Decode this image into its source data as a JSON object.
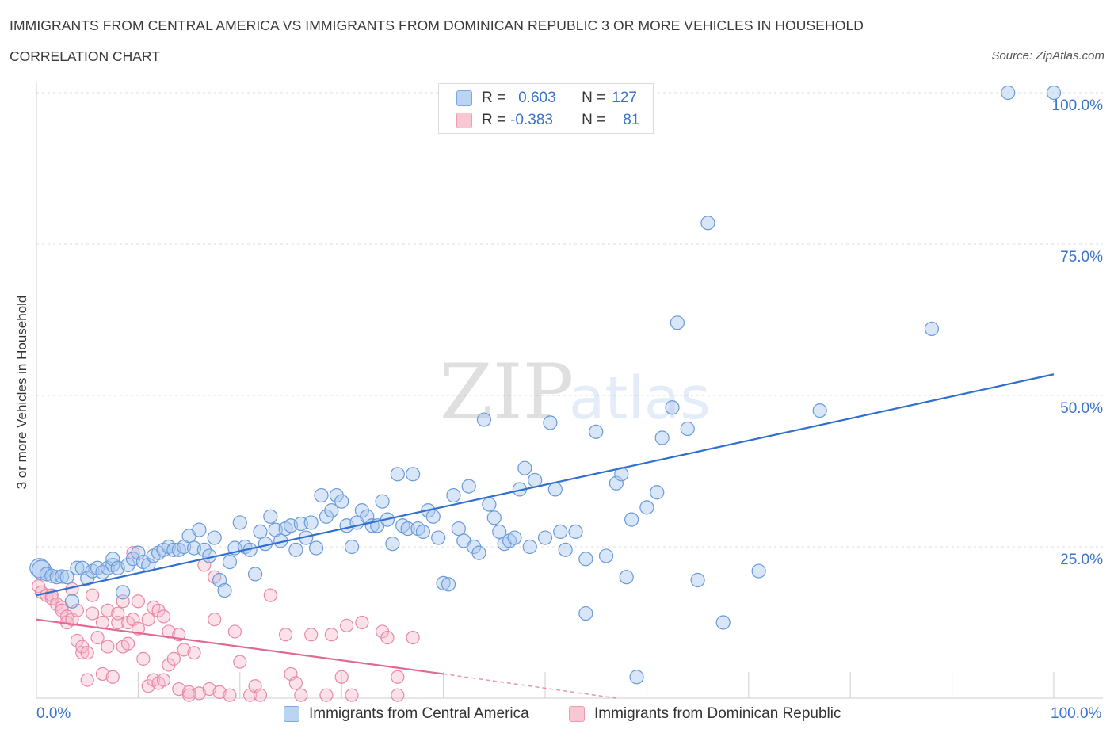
{
  "header": {
    "title": "IMMIGRANTS FROM CENTRAL AMERICA VS IMMIGRANTS FROM DOMINICAN REPUBLIC 3 OR MORE VEHICLES IN HOUSEHOLD",
    "subtitle": "CORRELATION CHART",
    "source": "Source: ZipAtlas.com"
  },
  "watermark": {
    "zip": "ZIP",
    "atlas": "atlas"
  },
  "legend": {
    "rows": [
      {
        "r_label": "R =",
        "r_value": "0.603",
        "n_label": "N =",
        "n_value": "127",
        "color": "#7aa8e8"
      },
      {
        "r_label": "R =",
        "r_value": "-0.383",
        "n_label": "N =",
        "n_value": "81",
        "color": "#f09ab5"
      }
    ]
  },
  "colors": {
    "blue_fill": "#a8c8f0",
    "blue_stroke": "#6a9ad8",
    "blue_line": "#2f6fd0",
    "pink_fill": "#f7bccc",
    "pink_stroke": "#e888a8",
    "pink_line": "#e06a92",
    "accent_text": "#3b73c8"
  },
  "chart_data": {
    "type": "scatter",
    "title": "IMMIGRANTS FROM CENTRAL AMERICA VS IMMIGRANTS FROM DOMINICAN REPUBLIC 3 OR MORE VEHICLES IN HOUSEHOLD",
    "subtitle": "CORRELATION CHART",
    "xlabel": "",
    "ylabel": "3 or more Vehicles in Household",
    "xlim": [
      0,
      100
    ],
    "ylim": [
      0,
      100
    ],
    "x_tick_labels": [
      "0.0%",
      "100.0%"
    ],
    "y_tick_labels": [
      "25.0%",
      "50.0%",
      "75.0%",
      "100.0%"
    ],
    "y_ticks": [
      25,
      50,
      75,
      100
    ],
    "grid": true,
    "legend_position": "top-center and bottom",
    "series": [
      {
        "name": "Immigrants from Central America",
        "R": 0.603,
        "N": 127,
        "trend": {
          "x": [
            0,
            100
          ],
          "y": [
            17.0,
            53.5
          ],
          "style": "solid"
        },
        "points": [
          [
            0.3,
            21.5
          ],
          [
            0.5,
            21.2
          ],
          [
            1.0,
            20.5
          ],
          [
            1.5,
            20.2
          ],
          [
            2.0,
            20.0
          ],
          [
            2.5,
            20.1
          ],
          [
            3.0,
            20.0
          ],
          [
            3.5,
            16.0
          ],
          [
            4.0,
            21.5
          ],
          [
            4.5,
            21.5
          ],
          [
            5.0,
            19.8
          ],
          [
            5.5,
            21.0
          ],
          [
            6.0,
            21.5
          ],
          [
            6.5,
            20.8
          ],
          [
            7.0,
            21.5
          ],
          [
            7.5,
            22.0
          ],
          [
            7.5,
            23.0
          ],
          [
            8.0,
            21.5
          ],
          [
            8.5,
            17.5
          ],
          [
            9.0,
            22.0
          ],
          [
            9.5,
            23.0
          ],
          [
            10.0,
            24.0
          ],
          [
            10.5,
            22.5
          ],
          [
            11.0,
            22.0
          ],
          [
            11.5,
            23.5
          ],
          [
            12.0,
            24.0
          ],
          [
            12.5,
            24.5
          ],
          [
            13.0,
            25.0
          ],
          [
            13.5,
            24.5
          ],
          [
            14.0,
            24.5
          ],
          [
            14.5,
            25.0
          ],
          [
            15.0,
            26.8
          ],
          [
            15.5,
            24.8
          ],
          [
            16.0,
            27.8
          ],
          [
            16.5,
            24.5
          ],
          [
            17.0,
            23.5
          ],
          [
            17.5,
            26.5
          ],
          [
            18.0,
            19.5
          ],
          [
            18.5,
            17.8
          ],
          [
            19.0,
            22.5
          ],
          [
            19.5,
            24.8
          ],
          [
            20.0,
            29.0
          ],
          [
            20.5,
            25.0
          ],
          [
            21.0,
            24.5
          ],
          [
            21.5,
            20.5
          ],
          [
            22.0,
            27.5
          ],
          [
            22.5,
            25.5
          ],
          [
            23.0,
            30.0
          ],
          [
            23.5,
            27.8
          ],
          [
            24.0,
            26.0
          ],
          [
            24.5,
            28.0
          ],
          [
            25.0,
            28.5
          ],
          [
            25.5,
            24.5
          ],
          [
            26.0,
            28.8
          ],
          [
            26.5,
            26.5
          ],
          [
            27.0,
            29.0
          ],
          [
            27.5,
            24.8
          ],
          [
            28.0,
            33.5
          ],
          [
            28.5,
            30.0
          ],
          [
            29.0,
            31.0
          ],
          [
            29.5,
            33.5
          ],
          [
            30.0,
            32.5
          ],
          [
            30.5,
            28.5
          ],
          [
            31.0,
            25.0
          ],
          [
            31.5,
            29.0
          ],
          [
            32.0,
            31.0
          ],
          [
            32.5,
            30.0
          ],
          [
            33.0,
            28.5
          ],
          [
            33.5,
            28.5
          ],
          [
            34.0,
            32.5
          ],
          [
            34.5,
            29.5
          ],
          [
            35.0,
            25.5
          ],
          [
            35.5,
            37.0
          ],
          [
            36.0,
            28.5
          ],
          [
            36.5,
            28.0
          ],
          [
            37.0,
            37.0
          ],
          [
            37.5,
            28.0
          ],
          [
            38.0,
            27.5
          ],
          [
            38.5,
            31.0
          ],
          [
            39.0,
            30.0
          ],
          [
            39.5,
            26.5
          ],
          [
            40.0,
            19.0
          ],
          [
            40.5,
            18.8
          ],
          [
            41.0,
            33.5
          ],
          [
            41.5,
            28.0
          ],
          [
            42.0,
            26.0
          ],
          [
            42.5,
            35.0
          ],
          [
            43.0,
            25.0
          ],
          [
            43.5,
            24.0
          ],
          [
            44.0,
            46.0
          ],
          [
            44.5,
            32.0
          ],
          [
            45.0,
            29.8
          ],
          [
            45.5,
            27.5
          ],
          [
            46.0,
            25.5
          ],
          [
            46.5,
            26.0
          ],
          [
            47.0,
            26.5
          ],
          [
            47.5,
            34.5
          ],
          [
            48.0,
            38.0
          ],
          [
            48.5,
            25.0
          ],
          [
            49.0,
            36.0
          ],
          [
            50.0,
            26.5
          ],
          [
            50.5,
            45.5
          ],
          [
            51.0,
            34.5
          ],
          [
            51.5,
            27.5
          ],
          [
            52.0,
            24.5
          ],
          [
            53.0,
            27.5
          ],
          [
            54.0,
            14.0
          ],
          [
            54.0,
            23.0
          ],
          [
            55.0,
            44.0
          ],
          [
            56.0,
            23.5
          ],
          [
            57.0,
            35.5
          ],
          [
            57.5,
            37.0
          ],
          [
            58.0,
            20.0
          ],
          [
            58.5,
            29.5
          ],
          [
            59.0,
            3.5
          ],
          [
            60.0,
            31.5
          ],
          [
            61.0,
            34.0
          ],
          [
            61.5,
            43.0
          ],
          [
            62.5,
            48.0
          ],
          [
            63.0,
            62.0
          ],
          [
            64.0,
            44.5
          ],
          [
            65.0,
            19.5
          ],
          [
            66.0,
            78.5
          ],
          [
            67.5,
            12.5
          ],
          [
            71.0,
            21.0
          ],
          [
            77.0,
            47.5
          ],
          [
            88.0,
            61.0
          ],
          [
            95.5,
            100.0
          ],
          [
            100.0,
            100.0
          ]
        ]
      },
      {
        "name": "Immigrants from Dominican Republic",
        "R": -0.383,
        "N": 81,
        "trend": {
          "x": [
            0,
            40,
            57
          ],
          "y": [
            13.0,
            4.0,
            0.0
          ],
          "style": "solid then dashed after x=40"
        },
        "points": [
          [
            0.2,
            18.5
          ],
          [
            0.5,
            17.5
          ],
          [
            1.0,
            17.0
          ],
          [
            1.5,
            16.5
          ],
          [
            1.5,
            17.0
          ],
          [
            2.0,
            15.5
          ],
          [
            2.5,
            15.0
          ],
          [
            2.5,
            14.5
          ],
          [
            3.0,
            13.5
          ],
          [
            3.0,
            12.5
          ],
          [
            3.5,
            13.0
          ],
          [
            3.5,
            18.0
          ],
          [
            4.0,
            9.5
          ],
          [
            4.0,
            14.5
          ],
          [
            4.5,
            7.5
          ],
          [
            4.5,
            8.5
          ],
          [
            5.0,
            7.5
          ],
          [
            5.0,
            3.0
          ],
          [
            5.5,
            17.0
          ],
          [
            5.5,
            14.0
          ],
          [
            6.0,
            10.0
          ],
          [
            6.5,
            12.5
          ],
          [
            6.5,
            4.0
          ],
          [
            7.0,
            8.5
          ],
          [
            7.0,
            14.5
          ],
          [
            7.5,
            3.5
          ],
          [
            8.0,
            12.5
          ],
          [
            8.0,
            14.0
          ],
          [
            8.5,
            16.0
          ],
          [
            8.5,
            8.5
          ],
          [
            9.0,
            12.5
          ],
          [
            9.0,
            9.0
          ],
          [
            9.5,
            13.0
          ],
          [
            9.5,
            24.0
          ],
          [
            10.0,
            11.5
          ],
          [
            10.0,
            16.0
          ],
          [
            10.5,
            6.5
          ],
          [
            11.0,
            13.0
          ],
          [
            11.0,
            2.0
          ],
          [
            11.5,
            3.0
          ],
          [
            11.5,
            15.0
          ],
          [
            12.0,
            14.5
          ],
          [
            12.0,
            2.5
          ],
          [
            12.5,
            13.5
          ],
          [
            12.5,
            3.0
          ],
          [
            13.0,
            5.5
          ],
          [
            13.0,
            11.0
          ],
          [
            13.5,
            6.5
          ],
          [
            14.0,
            1.5
          ],
          [
            14.0,
            10.5
          ],
          [
            14.5,
            8.0
          ],
          [
            15.0,
            1.0
          ],
          [
            15.0,
            0.5
          ],
          [
            15.5,
            7.5
          ],
          [
            16.0,
            0.8
          ],
          [
            16.5,
            22.0
          ],
          [
            17.0,
            1.5
          ],
          [
            17.5,
            20.0
          ],
          [
            17.5,
            13.0
          ],
          [
            18.0,
            1.0
          ],
          [
            19.0,
            0.5
          ],
          [
            19.5,
            11.0
          ],
          [
            20.0,
            6.0
          ],
          [
            21.0,
            0.5
          ],
          [
            21.5,
            2.0
          ],
          [
            22.0,
            0.5
          ],
          [
            23.0,
            17.0
          ],
          [
            24.5,
            10.5
          ],
          [
            25.0,
            4.0
          ],
          [
            25.5,
            2.5
          ],
          [
            26.0,
            0.5
          ],
          [
            27.0,
            10.5
          ],
          [
            28.5,
            0.5
          ],
          [
            29.0,
            10.5
          ],
          [
            30.0,
            3.5
          ],
          [
            30.5,
            12.0
          ],
          [
            31.0,
            0.5
          ],
          [
            32.0,
            12.5
          ],
          [
            34.0,
            11.0
          ],
          [
            34.5,
            10.0
          ],
          [
            35.5,
            0.5
          ],
          [
            35.5,
            3.5
          ],
          [
            37.0,
            10.0
          ]
        ]
      }
    ]
  },
  "bottom_legend": {
    "items": [
      {
        "label": "Immigrants from Central America"
      },
      {
        "label": "Immigrants from Dominican Republic"
      }
    ]
  }
}
